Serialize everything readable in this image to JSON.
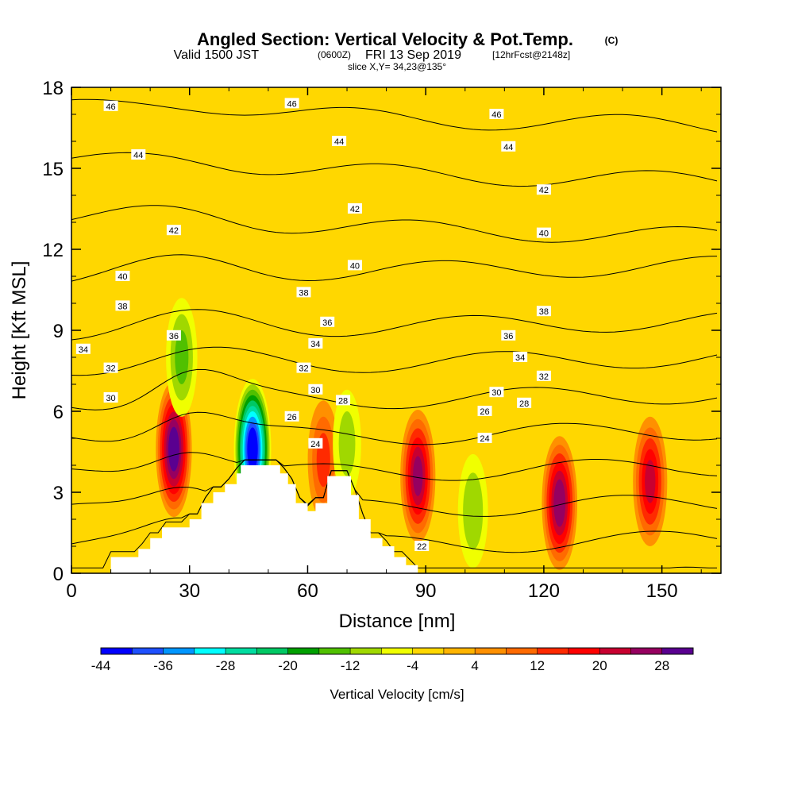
{
  "title": {
    "main": "Angled Section: Vertical Velocity & Pot.Temp.",
    "main_suffix": "(C)",
    "valid_prefix": "Valid 1500 JST",
    "valid_utc": "(0600Z)",
    "valid_date": "FRI 13 Sep 2019",
    "valid_fcst": "[12hrFcst@2148z]",
    "slice": "slice X,Y= 34,23@135°"
  },
  "colors": {
    "background_field": "#ffd700",
    "terrain": "#ffffff"
  },
  "chart_data": {
    "type": "heatmap",
    "xlabel": "Distance [nm]",
    "ylabel": "Height [Kft MSL]",
    "xlim": [
      0,
      165
    ],
    "ylim": [
      0,
      18
    ],
    "xticks": [
      "0",
      "30",
      "60",
      "90",
      "120",
      "150"
    ],
    "yticks": [
      "0",
      "3",
      "6",
      "9",
      "12",
      "15",
      "18"
    ],
    "colorbar": {
      "label": "Vertical Velocity [cm/s]",
      "tick_labels": [
        "-44",
        "-36",
        "-28",
        "-20",
        "-12",
        "-4",
        "4",
        "12",
        "20",
        "28"
      ],
      "levels": [
        -44,
        -40,
        -36,
        -32,
        -28,
        -24,
        -20,
        -16,
        -12,
        -8,
        -4,
        0,
        4,
        8,
        12,
        16,
        20,
        24,
        28,
        32
      ],
      "colors": [
        "#0000ff",
        "#1e50ff",
        "#0096ff",
        "#00ffff",
        "#00dca0",
        "#00c864",
        "#00a000",
        "#50c000",
        "#a0d800",
        "#f0ff00",
        "#ffd700",
        "#ffb400",
        "#ff9000",
        "#ff6a00",
        "#ff2a00",
        "#ff0000",
        "#c80030",
        "#960060",
        "#5a0090"
      ]
    },
    "terrain_profile": [
      [
        0,
        0
      ],
      [
        10,
        0
      ],
      [
        10,
        0.6
      ],
      [
        17,
        0.6
      ],
      [
        17,
        0.9
      ],
      [
        20,
        0.9
      ],
      [
        20,
        1.3
      ],
      [
        23,
        1.3
      ],
      [
        23,
        1.7
      ],
      [
        30,
        1.7
      ],
      [
        30,
        2.0
      ],
      [
        33,
        2.0
      ],
      [
        33,
        2.6
      ],
      [
        36,
        2.6
      ],
      [
        36,
        3.0
      ],
      [
        39,
        3.0
      ],
      [
        39,
        3.3
      ],
      [
        42,
        3.3
      ],
      [
        42,
        3.7
      ],
      [
        43,
        3.7
      ],
      [
        43,
        4.0
      ],
      [
        53,
        4.0
      ],
      [
        53,
        3.7
      ],
      [
        55,
        3.7
      ],
      [
        55,
        3.3
      ],
      [
        57,
        3.3
      ],
      [
        57,
        2.6
      ],
      [
        60,
        2.6
      ],
      [
        60,
        2.3
      ],
      [
        62,
        2.3
      ],
      [
        62,
        2.6
      ],
      [
        65,
        2.6
      ],
      [
        65,
        3.6
      ],
      [
        71,
        3.6
      ],
      [
        71,
        2.9
      ],
      [
        73,
        2.9
      ],
      [
        73,
        2.0
      ],
      [
        76,
        2.0
      ],
      [
        76,
        1.3
      ],
      [
        79,
        1.3
      ],
      [
        79,
        1.0
      ],
      [
        82,
        1.0
      ],
      [
        82,
        0.6
      ],
      [
        85,
        0.6
      ],
      [
        85,
        0.3
      ],
      [
        88,
        0.3
      ],
      [
        88,
        0
      ],
      [
        165,
        0
      ]
    ],
    "updrafts": [
      {
        "x": 26,
        "y": 4.6,
        "peak": 30
      },
      {
        "x": 88,
        "y": 3.6,
        "peak": 24
      },
      {
        "x": 124,
        "y": 2.6,
        "peak": 26
      },
      {
        "x": 147,
        "y": 3.4,
        "peak": 20
      },
      {
        "x": 64,
        "y": 4.2,
        "peak": 12
      }
    ],
    "downdrafts": [
      {
        "x": 46,
        "y": 4.6,
        "peak": -44
      },
      {
        "x": 28,
        "y": 8.0,
        "peak": -12
      },
      {
        "x": 102,
        "y": 2.3,
        "peak": -10
      },
      {
        "x": 70,
        "y": 4.8,
        "peak": -8
      }
    ],
    "contour_labels": [
      {
        "text": "46",
        "x": 10,
        "y": 17.3
      },
      {
        "text": "46",
        "x": 56,
        "y": 17.4
      },
      {
        "text": "46",
        "x": 108,
        "y": 17.0
      },
      {
        "text": "44",
        "x": 17,
        "y": 15.5
      },
      {
        "text": "44",
        "x": 68,
        "y": 16.0
      },
      {
        "text": "44",
        "x": 111,
        "y": 15.8
      },
      {
        "text": "42",
        "x": 26,
        "y": 12.7
      },
      {
        "text": "42",
        "x": 72,
        "y": 13.5
      },
      {
        "text": "42",
        "x": 120,
        "y": 14.2
      },
      {
        "text": "40",
        "x": 13,
        "y": 11.0
      },
      {
        "text": "40",
        "x": 72,
        "y": 11.4
      },
      {
        "text": "40",
        "x": 120,
        "y": 12.6
      },
      {
        "text": "38",
        "x": 13,
        "y": 9.9
      },
      {
        "text": "38",
        "x": 59,
        "y": 10.4
      },
      {
        "text": "38",
        "x": 120,
        "y": 9.7
      },
      {
        "text": "36",
        "x": 26,
        "y": 8.8
      },
      {
        "text": "36",
        "x": 65,
        "y": 9.3
      },
      {
        "text": "36",
        "x": 111,
        "y": 8.8
      },
      {
        "text": "34",
        "x": 3,
        "y": 8.3
      },
      {
        "text": "34",
        "x": 62,
        "y": 8.5
      },
      {
        "text": "34",
        "x": 114,
        "y": 8.0
      },
      {
        "text": "32",
        "x": 10,
        "y": 7.6
      },
      {
        "text": "32",
        "x": 59,
        "y": 7.6
      },
      {
        "text": "32",
        "x": 120,
        "y": 7.3
      },
      {
        "text": "30",
        "x": 10,
        "y": 6.5
      },
      {
        "text": "30",
        "x": 62,
        "y": 6.8
      },
      {
        "text": "30",
        "x": 108,
        "y": 6.7
      },
      {
        "text": "28",
        "x": 69,
        "y": 6.4
      },
      {
        "text": "28",
        "x": 115,
        "y": 6.3
      },
      {
        "text": "26",
        "x": 56,
        "y": 5.8
      },
      {
        "text": "26",
        "x": 105,
        "y": 6.0
      },
      {
        "text": "24",
        "x": 62,
        "y": 4.8
      },
      {
        "text": "24",
        "x": 105,
        "y": 5.0
      },
      {
        "text": "22",
        "x": 89,
        "y": 1.0
      }
    ],
    "theta_levels": [
      22,
      24,
      26,
      28,
      30,
      32,
      34,
      36,
      38,
      40,
      42,
      44,
      46
    ]
  }
}
